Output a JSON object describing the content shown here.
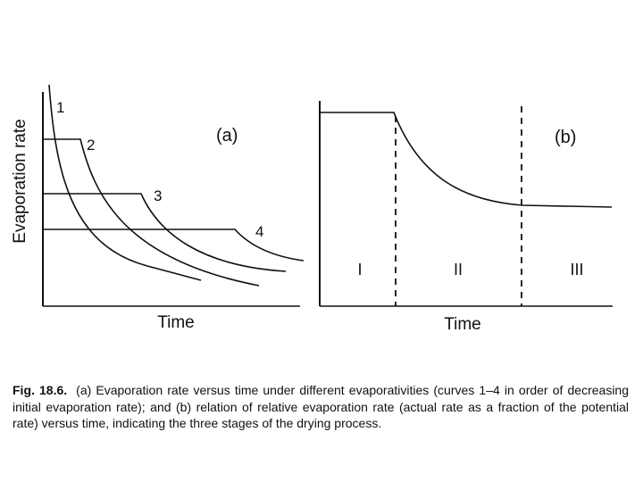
{
  "panel_a": {
    "label": "(a)",
    "ylabel": "Evaporation rate",
    "xlabel": "Time",
    "curve_labels": [
      "1",
      "2",
      "3",
      "4"
    ]
  },
  "panel_b": {
    "label": "(b)",
    "xlabel": "Time",
    "stage_labels": [
      "I",
      "II",
      "III"
    ]
  },
  "caption": {
    "fig_label": "Fig. 18.6.",
    "text": "(a) Evaporation rate versus time under different evaporativities (curves 1–4 in order of decreasing initial evaporation rate); and (b) relation of relative evaporation rate (actual rate as a fraction of the potential rate) versus time, indicating the three stages of the drying process."
  },
  "colors": {
    "ink": "#111111",
    "background": "#ffffff"
  }
}
